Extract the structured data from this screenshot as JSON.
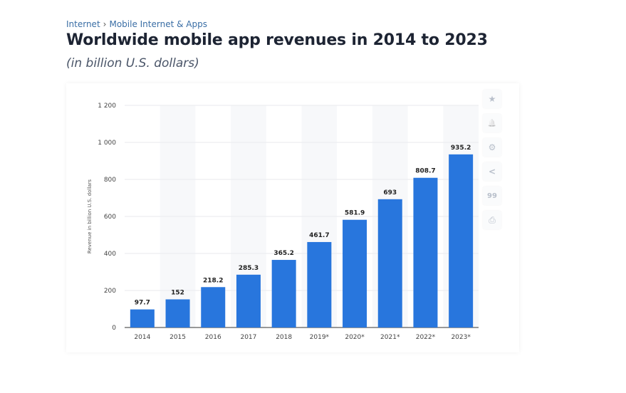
{
  "breadcrumb": {
    "items": [
      "Internet",
      "Mobile Internet & Apps"
    ],
    "separator": "›"
  },
  "header": {
    "title": "Worldwide mobile app revenues in 2014 to 2023",
    "subtitle": "(in billion U.S. dollars)"
  },
  "toolbar": [
    {
      "icon": "star-icon",
      "glyph": "★"
    },
    {
      "icon": "bell-icon",
      "glyph": "🔔"
    },
    {
      "icon": "gear-icon",
      "glyph": "⚙"
    },
    {
      "icon": "share-icon",
      "glyph": "<"
    },
    {
      "icon": "quote-icon",
      "glyph": "99"
    },
    {
      "icon": "print-icon",
      "glyph": "⎙"
    }
  ],
  "colors": {
    "bar": "#2876dd",
    "band": "#f7f8fa",
    "grid": "#e8eaee"
  },
  "chart_data": {
    "type": "bar",
    "title": "Worldwide mobile app revenues in 2014 to 2023",
    "xlabel": "",
    "ylabel": "Revenue in billion U.S. dollars",
    "categories": [
      "2014",
      "2015",
      "2016",
      "2017",
      "2018",
      "2019*",
      "2020*",
      "2021*",
      "2022*",
      "2023*"
    ],
    "values": [
      97.7,
      152,
      218.2,
      285.3,
      365.2,
      461.7,
      581.9,
      693,
      808.7,
      935.2
    ],
    "labels": [
      "97.7",
      "152",
      "218.2",
      "285.3",
      "365.2",
      "461.7",
      "581.9",
      "693",
      "808.7",
      "935.2"
    ],
    "ylim": [
      0,
      1200
    ],
    "yticks": [
      0,
      200,
      400,
      600,
      800,
      1000,
      1200
    ],
    "ytick_labels": [
      "0",
      "200",
      "400",
      "600",
      "800",
      "1 000",
      "1 200"
    ],
    "grid": true
  }
}
